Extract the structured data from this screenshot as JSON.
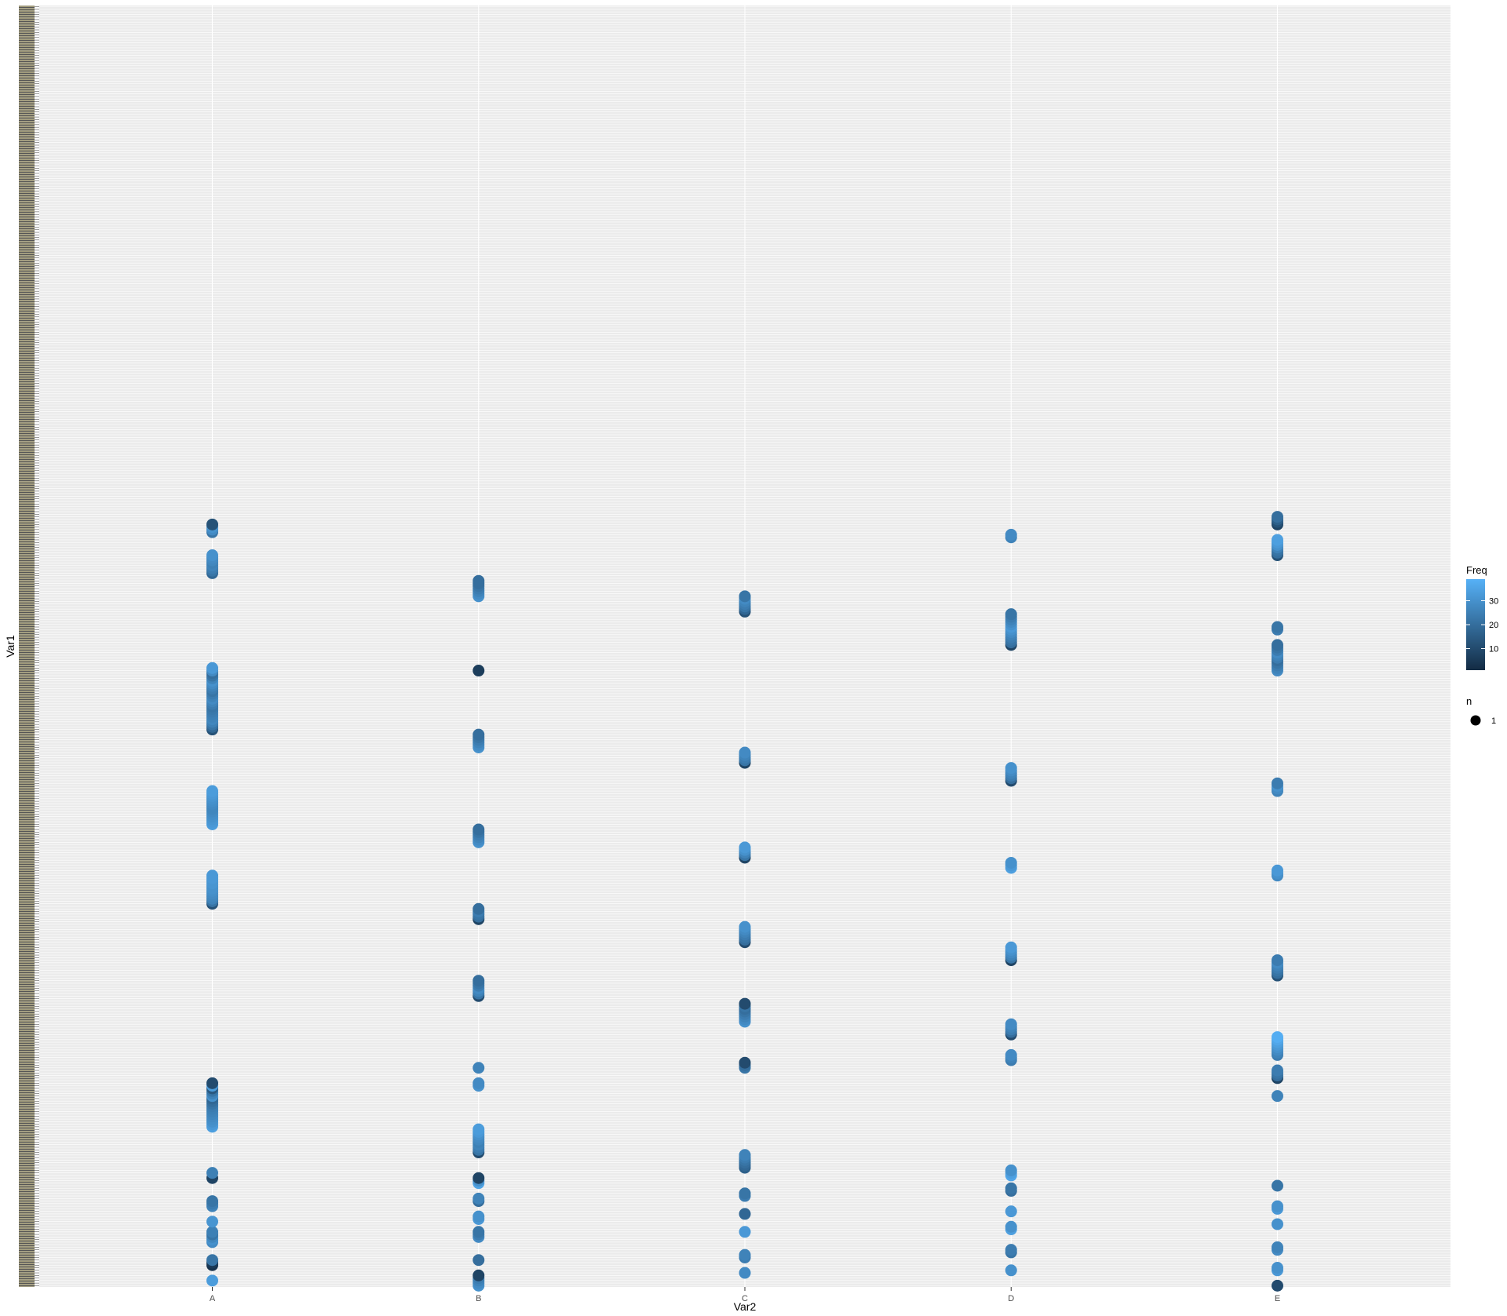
{
  "chart_data": {
    "type": "scatter",
    "xlabel": "Var2",
    "ylabel": "Var1",
    "categories": [
      "A",
      "B",
      "C",
      "D",
      "E"
    ],
    "y_levels": 500,
    "grid": true,
    "legend_position": "right",
    "colors": {
      "panel": "#ebebeb",
      "low": "#132b43",
      "high": "#56b1f7"
    },
    "legends": [
      {
        "title": "Freq",
        "type": "colorbar",
        "range": [
          1,
          39
        ],
        "ticks": [
          10,
          20,
          30
        ]
      },
      {
        "title": "n",
        "type": "size",
        "entries": [
          {
            "label": "1",
            "value": 1
          }
        ]
      }
    ],
    "groups": [
      {
        "x": "A",
        "points": [
          [
            2,
            33
          ],
          [
            8,
            3
          ],
          [
            9,
            5
          ],
          [
            10,
            22
          ],
          [
            17,
            28
          ],
          [
            18,
            30
          ],
          [
            19,
            27
          ],
          [
            20,
            22
          ],
          [
            21,
            25
          ],
          [
            25,
            31
          ],
          [
            31,
            26
          ],
          [
            32,
            24
          ],
          [
            33,
            22
          ],
          [
            42,
            8
          ],
          [
            44,
            25
          ],
          [
            62,
            34
          ],
          [
            63,
            32
          ],
          [
            64,
            30
          ],
          [
            65,
            29
          ],
          [
            66,
            28
          ],
          [
            67,
            27
          ],
          [
            68,
            26
          ],
          [
            69,
            25
          ],
          [
            70,
            24
          ],
          [
            71,
            22
          ],
          [
            72,
            20
          ],
          [
            73,
            18
          ],
          [
            74,
            30
          ],
          [
            75,
            26
          ],
          [
            76,
            22
          ],
          [
            77,
            14
          ],
          [
            78,
            33
          ],
          [
            79,
            10
          ],
          [
            149,
            12
          ],
          [
            150,
            22
          ],
          [
            151,
            26
          ],
          [
            152,
            27
          ],
          [
            153,
            28
          ],
          [
            154,
            29
          ],
          [
            155,
            30
          ],
          [
            156,
            30
          ],
          [
            157,
            31
          ],
          [
            158,
            31
          ],
          [
            159,
            32
          ],
          [
            160,
            32
          ],
          [
            180,
            33
          ],
          [
            181,
            32
          ],
          [
            182,
            31
          ],
          [
            183,
            30
          ],
          [
            184,
            29
          ],
          [
            185,
            28
          ],
          [
            186,
            27
          ],
          [
            187,
            27
          ],
          [
            188,
            28
          ],
          [
            189,
            29
          ],
          [
            190,
            30
          ],
          [
            191,
            31
          ],
          [
            192,
            32
          ],
          [
            193,
            33
          ],
          [
            217,
            12
          ],
          [
            218,
            18
          ],
          [
            219,
            22
          ],
          [
            220,
            25
          ],
          [
            221,
            27
          ],
          [
            222,
            26
          ],
          [
            223,
            25
          ],
          [
            224,
            24
          ],
          [
            225,
            23
          ],
          [
            226,
            22
          ],
          [
            227,
            24
          ],
          [
            228,
            26
          ],
          [
            229,
            28
          ],
          [
            230,
            26
          ],
          [
            231,
            24
          ],
          [
            232,
            22
          ],
          [
            233,
            24
          ],
          [
            234,
            26
          ],
          [
            235,
            28
          ],
          [
            236,
            30
          ],
          [
            237,
            26
          ],
          [
            238,
            22
          ],
          [
            239,
            20
          ],
          [
            240,
            28
          ],
          [
            241,
            32
          ],
          [
            278,
            18
          ],
          [
            279,
            22
          ],
          [
            280,
            24
          ],
          [
            281,
            26
          ],
          [
            282,
            25
          ],
          [
            283,
            27
          ],
          [
            284,
            28
          ],
          [
            285,
            30
          ],
          [
            294,
            22
          ],
          [
            295,
            28
          ],
          [
            296,
            30
          ],
          [
            297,
            12
          ]
        ]
      },
      {
        "x": "B",
        "points": [
          [
            0,
            30
          ],
          [
            1,
            28
          ],
          [
            2,
            26
          ],
          [
            3,
            24
          ],
          [
            4,
            8
          ],
          [
            10,
            20
          ],
          [
            19,
            28
          ],
          [
            20,
            24
          ],
          [
            21,
            22
          ],
          [
            26,
            32
          ],
          [
            27,
            30
          ],
          [
            33,
            20
          ],
          [
            34,
            26
          ],
          [
            40,
            35
          ],
          [
            41,
            30
          ],
          [
            42,
            8
          ],
          [
            52,
            10
          ],
          [
            53,
            22
          ],
          [
            54,
            24
          ],
          [
            55,
            26
          ],
          [
            56,
            25
          ],
          [
            57,
            27
          ],
          [
            58,
            28
          ],
          [
            59,
            30
          ],
          [
            60,
            32
          ],
          [
            61,
            33
          ],
          [
            78,
            30
          ],
          [
            79,
            28
          ],
          [
            85,
            26
          ],
          [
            113,
            10
          ],
          [
            114,
            22
          ],
          [
            115,
            26
          ],
          [
            116,
            28
          ],
          [
            117,
            24
          ],
          [
            118,
            22
          ],
          [
            119,
            20
          ],
          [
            143,
            8
          ],
          [
            144,
            20
          ],
          [
            145,
            22
          ],
          [
            146,
            24
          ],
          [
            147,
            20
          ],
          [
            173,
            30
          ],
          [
            174,
            28
          ],
          [
            175,
            26
          ],
          [
            176,
            24
          ],
          [
            177,
            22
          ],
          [
            178,
            20
          ],
          [
            210,
            30
          ],
          [
            211,
            28
          ],
          [
            212,
            26
          ],
          [
            213,
            24
          ],
          [
            214,
            22
          ],
          [
            215,
            20
          ],
          [
            240,
            6
          ],
          [
            269,
            30
          ],
          [
            270,
            28
          ],
          [
            271,
            26
          ],
          [
            272,
            24
          ],
          [
            273,
            22
          ],
          [
            274,
            20
          ],
          [
            275,
            20
          ]
        ]
      },
      {
        "x": "C",
        "points": [
          [
            5,
            28
          ],
          [
            11,
            24
          ],
          [
            12,
            26
          ],
          [
            21,
            32
          ],
          [
            28,
            18
          ],
          [
            35,
            24
          ],
          [
            36,
            22
          ],
          [
            46,
            16
          ],
          [
            47,
            18
          ],
          [
            48,
            20
          ],
          [
            49,
            22
          ],
          [
            50,
            24
          ],
          [
            51,
            26
          ],
          [
            85,
            22
          ],
          [
            86,
            20
          ],
          [
            87,
            10
          ],
          [
            103,
            30
          ],
          [
            104,
            28
          ],
          [
            105,
            26
          ],
          [
            106,
            24
          ],
          [
            107,
            22
          ],
          [
            108,
            20
          ],
          [
            109,
            22
          ],
          [
            110,
            10
          ],
          [
            134,
            10
          ],
          [
            135,
            20
          ],
          [
            136,
            22
          ],
          [
            137,
            24
          ],
          [
            138,
            26
          ],
          [
            139,
            28
          ],
          [
            140,
            30
          ],
          [
            167,
            8
          ],
          [
            168,
            22
          ],
          [
            169,
            26
          ],
          [
            170,
            30
          ],
          [
            171,
            32
          ],
          [
            204,
            8
          ],
          [
            205,
            22
          ],
          [
            206,
            24
          ],
          [
            207,
            26
          ],
          [
            208,
            28
          ],
          [
            263,
            12
          ],
          [
            264,
            18
          ],
          [
            265,
            22
          ],
          [
            266,
            24
          ],
          [
            267,
            26
          ],
          [
            268,
            28
          ],
          [
            269,
            22
          ]
        ]
      },
      {
        "x": "D",
        "points": [
          [
            6,
            30
          ],
          [
            13,
            22
          ],
          [
            14,
            24
          ],
          [
            22,
            34
          ],
          [
            23,
            30
          ],
          [
            29,
            32
          ],
          [
            37,
            20
          ],
          [
            38,
            22
          ],
          [
            43,
            36
          ],
          [
            44,
            34
          ],
          [
            45,
            30
          ],
          [
            88,
            24
          ],
          [
            89,
            26
          ],
          [
            90,
            28
          ],
          [
            98,
            10
          ],
          [
            99,
            20
          ],
          [
            100,
            24
          ],
          [
            101,
            26
          ],
          [
            102,
            28
          ],
          [
            127,
            8
          ],
          [
            128,
            22
          ],
          [
            129,
            26
          ],
          [
            130,
            28
          ],
          [
            131,
            30
          ],
          [
            132,
            32
          ],
          [
            163,
            34
          ],
          [
            164,
            32
          ],
          [
            165,
            30
          ],
          [
            197,
            10
          ],
          [
            198,
            20
          ],
          [
            199,
            24
          ],
          [
            200,
            26
          ],
          [
            201,
            28
          ],
          [
            202,
            30
          ],
          [
            250,
            8
          ],
          [
            251,
            20
          ],
          [
            252,
            22
          ],
          [
            253,
            24
          ],
          [
            254,
            26
          ],
          [
            255,
            28
          ],
          [
            256,
            30
          ],
          [
            257,
            32
          ],
          [
            258,
            30
          ],
          [
            259,
            28
          ],
          [
            260,
            26
          ],
          [
            261,
            24
          ],
          [
            262,
            22
          ],
          [
            292,
            26
          ],
          [
            293,
            28
          ]
        ]
      },
      {
        "x": "E",
        "points": [
          [
            0,
            10
          ],
          [
            6,
            32
          ],
          [
            7,
            30
          ],
          [
            14,
            28
          ],
          [
            15,
            26
          ],
          [
            24,
            30
          ],
          [
            30,
            32
          ],
          [
            31,
            30
          ],
          [
            39,
            22
          ],
          [
            74,
            26
          ],
          [
            81,
            8
          ],
          [
            82,
            20
          ],
          [
            83,
            22
          ],
          [
            84,
            24
          ],
          [
            90,
            24
          ],
          [
            91,
            26
          ],
          [
            92,
            28
          ],
          [
            93,
            30
          ],
          [
            94,
            32
          ],
          [
            95,
            34
          ],
          [
            96,
            36
          ],
          [
            97,
            38
          ],
          [
            121,
            12
          ],
          [
            122,
            20
          ],
          [
            123,
            22
          ],
          [
            124,
            24
          ],
          [
            125,
            26
          ],
          [
            126,
            28
          ],
          [
            127,
            24
          ],
          [
            160,
            28
          ],
          [
            161,
            30
          ],
          [
            162,
            32
          ],
          [
            193,
            26
          ],
          [
            194,
            28
          ],
          [
            195,
            30
          ],
          [
            196,
            24
          ],
          [
            240,
            28
          ],
          [
            241,
            26
          ],
          [
            242,
            24
          ],
          [
            243,
            22
          ],
          [
            244,
            20
          ],
          [
            245,
            24
          ],
          [
            246,
            26
          ],
          [
            247,
            28
          ],
          [
            248,
            24
          ],
          [
            249,
            22
          ],
          [
            250,
            20
          ],
          [
            256,
            24
          ],
          [
            257,
            22
          ],
          [
            285,
            12
          ],
          [
            286,
            20
          ],
          [
            287,
            22
          ],
          [
            288,
            26
          ],
          [
            289,
            30
          ],
          [
            290,
            32
          ],
          [
            291,
            34
          ],
          [
            297,
            8
          ],
          [
            298,
            12
          ],
          [
            299,
            16
          ],
          [
            300,
            20
          ]
        ]
      }
    ]
  }
}
